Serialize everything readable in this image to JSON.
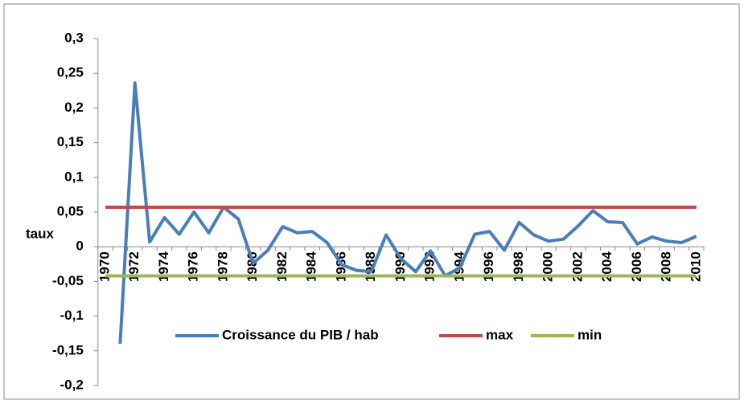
{
  "chart_data": {
    "type": "line",
    "y_label": "taux",
    "categories": [
      "1970",
      null,
      "1972",
      null,
      "1974",
      null,
      "1976",
      null,
      "1978",
      null,
      "1980",
      null,
      "1982",
      null,
      "1984",
      null,
      "1986",
      null,
      "1988",
      null,
      "1990",
      null,
      "1992",
      null,
      "1994",
      null,
      "1996",
      null,
      "1998",
      null,
      "2000",
      null,
      "2002",
      null,
      "2004",
      null,
      "2006",
      null,
      "2008",
      null,
      "2010"
    ],
    "series": [
      {
        "name": "Croissance du PIB / hab",
        "color": "#4a7ebb",
        "values": [
          null,
          -0.14,
          0.236,
          0.007,
          0.042,
          0.018,
          0.05,
          0.02,
          0.057,
          0.04,
          -0.024,
          -0.005,
          0.029,
          0.02,
          0.022,
          0.006,
          -0.026,
          -0.034,
          -0.036,
          0.017,
          -0.017,
          -0.036,
          -0.006,
          -0.042,
          -0.03,
          0.018,
          0.022,
          -0.005,
          0.035,
          0.017,
          0.008,
          0.011,
          0.03,
          0.052,
          0.036,
          0.035,
          0.004,
          0.014,
          0.008,
          0.006,
          0.015
        ]
      },
      {
        "name": "max",
        "color": "#be4b48",
        "values": [
          0.057,
          0.057,
          0.057,
          0.057,
          0.057,
          0.057,
          0.057,
          0.057,
          0.057,
          0.057,
          0.057,
          0.057,
          0.057,
          0.057,
          0.057,
          0.057,
          0.057,
          0.057,
          0.057,
          0.057,
          0.057,
          0.057,
          0.057,
          0.057,
          0.057,
          0.057,
          0.057,
          0.057,
          0.057,
          0.057,
          0.057,
          0.057,
          0.057,
          0.057,
          0.057,
          0.057,
          0.057,
          0.057,
          0.057,
          0.057,
          0.057
        ]
      },
      {
        "name": "min",
        "color": "#98b954",
        "values": [
          -0.042,
          -0.042,
          -0.042,
          -0.042,
          -0.042,
          -0.042,
          -0.042,
          -0.042,
          -0.042,
          -0.042,
          -0.042,
          -0.042,
          -0.042,
          -0.042,
          -0.042,
          -0.042,
          -0.042,
          -0.042,
          -0.042,
          -0.042,
          -0.042,
          -0.042,
          -0.042,
          -0.042,
          -0.042,
          -0.042,
          -0.042,
          -0.042,
          -0.042,
          -0.042,
          -0.042,
          -0.042,
          -0.042,
          -0.042,
          -0.042,
          -0.042,
          -0.042,
          -0.042,
          -0.042,
          -0.042,
          -0.042
        ]
      }
    ],
    "ylim": [
      -0.2,
      0.3
    ],
    "yticks": [
      {
        "value": -0.2,
        "label": "-0,2"
      },
      {
        "value": -0.15,
        "label": "-0,15"
      },
      {
        "value": -0.1,
        "label": "-0,1"
      },
      {
        "value": -0.05,
        "label": "-0,05"
      },
      0,
      {
        "value": 0.05,
        "label": "0,05"
      },
      {
        "value": 0.1,
        "label": "0,1"
      },
      {
        "value": 0.15,
        "label": "0,15"
      },
      {
        "value": 0.2,
        "label": "0,2"
      },
      {
        "value": 0.25,
        "label": "0,25"
      },
      {
        "value": 0.3,
        "label": "0,3"
      }
    ],
    "grid": false,
    "legend": "bottom"
  }
}
